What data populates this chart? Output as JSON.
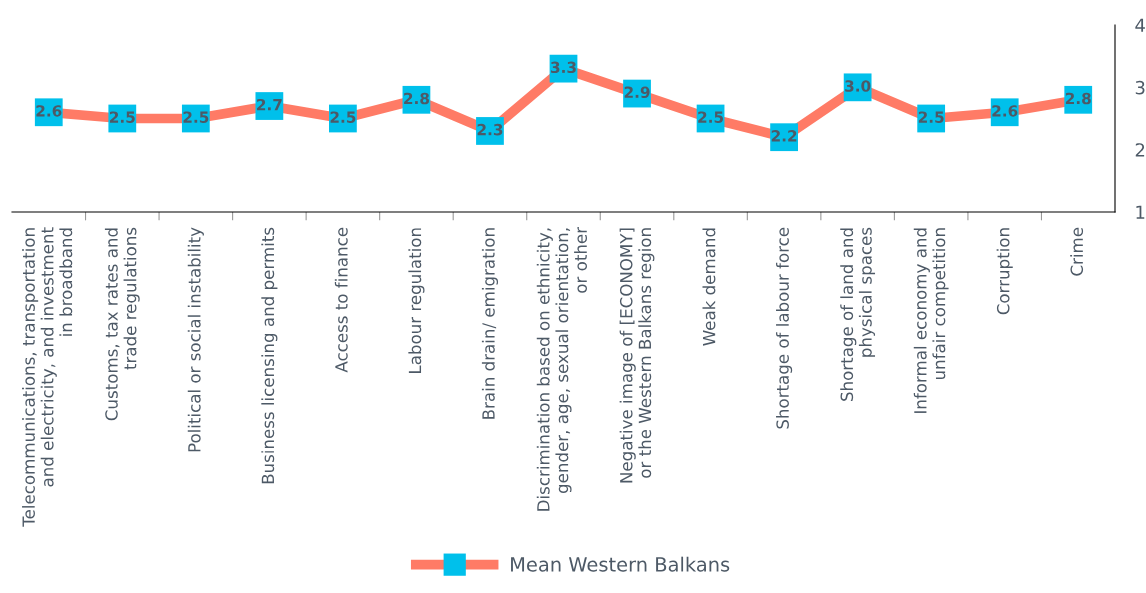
{
  "chart_data": {
    "type": "line",
    "categories": [
      "Telecommunications, transportation\nand electricity, and investment\nin broadband",
      "Customs, tax rates and\ntrade regulations",
      "Political or social instability",
      "Business licensing and permits",
      "Access to finance",
      "Labour regulation",
      "Brain drain/ emigration",
      "Discrimination based on ethnicity,\ngender, age, sexual orientation,\nor other",
      "Negative image of [ECONOMY]\nor the Western Balkans region",
      "Weak demand",
      "Shortage of labour force",
      "Shortage of land and\nphysical spaces",
      "Informal economy and\nunfair competition",
      "Corruption",
      "Crime"
    ],
    "series": [
      {
        "name": "Mean Western Balkans",
        "color": "#ff7b66",
        "values": [
          2.6,
          2.5,
          2.5,
          2.7,
          2.5,
          2.8,
          2.3,
          3.3,
          2.9,
          2.5,
          2.2,
          3.0,
          2.5,
          2.6,
          2.8
        ],
        "value_labels": [
          "2.6",
          "2.5",
          "2.5",
          "2.7",
          "2.5",
          "2.8",
          "2.3",
          "3.3",
          "2.9",
          "2.5",
          "2.2",
          "3.0",
          "2.5",
          "2.6",
          "2.8"
        ],
        "colors": [
          "#00c0eb",
          "#00c0eb",
          "#00c0eb",
          "#00c0eb",
          "#00c0eb",
          "#00c0eb",
          "#00c0eb",
          "#00c0eb",
          "#00c0eb",
          "#00c0eb",
          "#00c0eb",
          "#00c0eb",
          "#00c0eb",
          "#00c0eb",
          "#00c0eb"
        ]
      }
    ],
    "marker": "square",
    "ylim": [
      1,
      4
    ],
    "yticks": [
      1,
      2,
      3,
      4
    ],
    "grid": false,
    "legend": "bottom"
  }
}
